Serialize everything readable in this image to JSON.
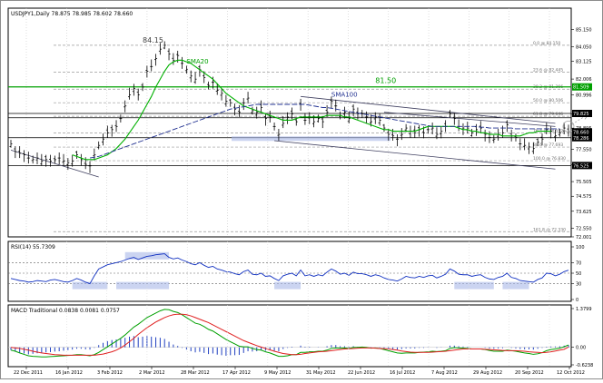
{
  "window": {
    "symbol_line": "USDJPY1,Daily  78.875 78.985 78.602 78.660"
  },
  "chart_data": {
    "type": "line",
    "price_panel": {
      "ylim": [
        72.0,
        86.5
      ],
      "ticks": [
        "85.150",
        "84.050",
        "83.125",
        "82.006",
        "80.996",
        "79.805",
        "78.895",
        "77.550",
        "76.575",
        "75.505",
        "74.575",
        "73.625",
        "72.550",
        "72.001"
      ],
      "series_names": {
        "price": "USDJPY1,Daily",
        "sma20": "SMA20",
        "sma100": "SMA100"
      },
      "annotations": {
        "high_label": "84.15",
        "resistance_label": "81.50",
        "sma20_label": "SMA20",
        "sma100_label": "SMA100"
      },
      "fib_levels": [
        {
          "label": "0.0 @ 84.150",
          "value": 84.15
        },
        {
          "label": "23.6 @ 82.445",
          "value": 82.445
        },
        {
          "label": "38.2 @ 81.366",
          "value": 81.366
        },
        {
          "label": "50.0 @ 80.506",
          "value": 80.506
        },
        {
          "label": "61.8 @ 79.646",
          "value": 79.646
        },
        {
          "label": "76.4 @ 78.582",
          "value": 78.582
        },
        {
          "label": "88.6 @ 77.693",
          "value": 77.693
        },
        {
          "label": "100.0 @ 76.830",
          "value": 76.83
        },
        {
          "label": "161.8 @ 72.330",
          "value": 72.33
        }
      ],
      "highlighted_prices": [
        {
          "label": "81.509",
          "value": 81.509,
          "color": "#00a000"
        },
        {
          "label": "79.825",
          "value": 79.825,
          "color": "#000000"
        },
        {
          "label": "78.660",
          "value": 78.66,
          "color": "#000000"
        },
        {
          "label": "78.286",
          "value": 78.286,
          "color": "#000000"
        },
        {
          "label": "76.525",
          "value": 76.525,
          "color": "#000000"
        }
      ],
      "horizontal_lines": [
        81.509,
        79.825,
        79.55,
        78.286,
        76.525
      ],
      "price_values": [
        77.9,
        77.4,
        77.3,
        77.2,
        77.0,
        76.9,
        77.0,
        76.8,
        76.9,
        76.8,
        76.9,
        77.0,
        76.8,
        76.7,
        76.8,
        77.2,
        76.9,
        76.6,
        76.5,
        77.2,
        77.8,
        78.2,
        78.6,
        78.8,
        79.0,
        79.5,
        80.3,
        81.0,
        81.4,
        81.0,
        81.5,
        82.5,
        82.8,
        83.3,
        83.9,
        84.15,
        83.6,
        83.2,
        83.5,
        83.0,
        82.6,
        82.2,
        82.0,
        82.6,
        82.1,
        81.6,
        81.8,
        81.3,
        81.1,
        80.6,
        80.5,
        80.1,
        79.9,
        80.5,
        80.8,
        80.0,
        79.9,
        80.2,
        79.5,
        79.6,
        79.0,
        78.5,
        79.2,
        79.6,
        79.8,
        79.3,
        80.4,
        79.4,
        79.6,
        79.3,
        79.5,
        79.3,
        79.9,
        80.6,
        80.3,
        79.7,
        79.9,
        79.5,
        80.1,
        79.8,
        79.8,
        79.6,
        79.3,
        79.6,
        79.4,
        78.9,
        78.5,
        78.4,
        78.2,
        78.5,
        78.9,
        78.7,
        78.6,
        78.8,
        78.6,
        78.8,
        78.9,
        78.5,
        78.7,
        79.0,
        79.8,
        79.5,
        79.0,
        78.9,
        78.9,
        78.6,
        78.8,
        78.9,
        78.5,
        78.3,
        78.2,
        78.5,
        78.6,
        79.1,
        78.4,
        78.3,
        77.9,
        77.8,
        77.7,
        77.6,
        78.0,
        78.2,
        78.8,
        78.7,
        78.4,
        78.6,
        78.9,
        78.66
      ],
      "sma20_values": [
        null,
        null,
        null,
        null,
        null,
        null,
        null,
        null,
        null,
        null,
        null,
        null,
        null,
        null,
        77.2,
        77.1,
        77.0,
        76.9,
        76.9,
        76.9,
        77.0,
        77.1,
        77.2,
        77.4,
        77.6,
        77.9,
        78.2,
        78.6,
        79.0,
        79.4,
        79.9,
        80.4,
        80.9,
        81.5,
        82.0,
        82.5,
        82.9,
        83.1,
        83.2,
        83.2,
        83.1,
        83.0,
        82.8,
        82.6,
        82.4,
        82.2,
        82.0,
        81.7,
        81.4,
        81.1,
        80.9,
        80.7,
        80.5,
        80.3,
        80.2,
        80.1,
        80.0,
        79.9,
        79.8,
        79.7,
        79.6,
        79.5,
        79.4,
        79.4,
        79.4,
        79.5,
        79.6,
        79.6,
        79.6,
        79.6,
        79.6,
        79.6,
        79.7,
        79.7,
        79.7,
        79.7,
        79.6,
        79.6,
        79.5,
        79.4,
        79.3,
        79.2,
        79.1,
        79.0,
        78.9,
        78.8,
        78.8,
        78.7,
        78.7,
        78.7,
        78.7,
        78.7,
        78.7,
        78.8,
        78.9,
        79.0,
        79.0,
        79.0,
        79.0,
        79.0,
        79.0,
        79.0,
        78.9,
        78.8,
        78.8,
        78.7,
        78.7,
        78.6,
        78.6,
        78.5,
        78.5,
        78.5,
        78.4,
        78.4,
        78.4,
        78.4,
        78.4,
        78.5,
        78.6,
        78.6,
        78.7,
        78.7,
        78.7,
        78.7
      ],
      "sma100_values": [
        null,
        null,
        null,
        null,
        null,
        null,
        null,
        null,
        null,
        null,
        null,
        null,
        null,
        null,
        null,
        null,
        null,
        null,
        77.0,
        77.05,
        77.1,
        77.2,
        77.3,
        77.4,
        77.5,
        77.6,
        77.7,
        77.8,
        77.9,
        78.0,
        78.1,
        78.2,
        78.3,
        78.4,
        78.5,
        78.6,
        78.7,
        78.8,
        78.9,
        79.0,
        79.1,
        79.2,
        79.3,
        79.4,
        79.5,
        79.6,
        79.7,
        79.8,
        79.9,
        80.0,
        80.1,
        80.15,
        80.2,
        80.25,
        80.3,
        80.35,
        80.4,
        80.4,
        80.4,
        80.4,
        80.4,
        80.4,
        80.4,
        80.4,
        80.4,
        80.4,
        80.4,
        80.4,
        80.35,
        80.3,
        80.25,
        80.2,
        80.2,
        80.15,
        80.1,
        80.05,
        80.0,
        79.95,
        79.9,
        79.85,
        79.8,
        79.75,
        79.7,
        79.65,
        79.6,
        79.55,
        79.5,
        79.45,
        79.4,
        79.35,
        79.3,
        79.25,
        79.2,
        79.15,
        79.1,
        79.05,
        79.0,
        79.0,
        79.0,
        79.0,
        79.0,
        79.0,
        79.0,
        79.0,
        79.0,
        79.0,
        79.0,
        78.95,
        78.95,
        78.9,
        78.9,
        78.9,
        78.9,
        78.9,
        78.9,
        78.85,
        78.85,
        78.85,
        78.85,
        78.85,
        78.85,
        78.85,
        78.85,
        78.85,
        78.85,
        78.85
      ]
    },
    "rsi_panel": {
      "title": "RSI(14) 55.7309",
      "ylim": [
        0,
        100
      ],
      "ticks": [
        "100",
        "70",
        "50",
        "30",
        "0"
      ],
      "levels": [
        70,
        50,
        30
      ],
      "values": [
        40,
        38,
        36,
        35,
        33,
        34,
        36,
        35,
        34,
        37,
        38,
        36,
        34,
        33,
        36,
        40,
        37,
        33,
        30,
        45,
        58,
        62,
        66,
        68,
        70,
        72,
        75,
        78,
        80,
        76,
        79,
        82,
        83,
        85,
        86,
        87,
        80,
        77,
        79,
        75,
        72,
        68,
        66,
        70,
        65,
        61,
        63,
        58,
        56,
        53,
        52,
        49,
        47,
        53,
        56,
        48,
        47,
        50,
        44,
        45,
        40,
        36,
        45,
        48,
        50,
        45,
        56,
        45,
        47,
        44,
        47,
        45,
        52,
        58,
        54,
        48,
        50,
        46,
        52,
        49,
        49,
        47,
        44,
        47,
        45,
        41,
        38,
        37,
        35,
        39,
        44,
        42,
        41,
        44,
        42,
        45,
        46,
        41,
        44,
        48,
        58,
        54,
        48,
        47,
        47,
        44,
        46,
        47,
        42,
        39,
        38,
        42,
        44,
        50,
        42,
        40,
        36,
        35,
        34,
        33,
        38,
        41,
        50,
        49,
        45,
        48,
        53,
        55.73
      ]
    },
    "macd_panel": {
      "title": "MACD Traditional 0.0838 0.0081 0.0757",
      "ylim": [
        -0.6238,
        1.3799
      ],
      "ticks": [
        "1.3799",
        "0.00",
        "-0.6238"
      ],
      "histogram": [
        -0.1,
        -0.15,
        -0.2,
        -0.22,
        -0.25,
        -0.23,
        -0.21,
        -0.2,
        -0.18,
        -0.17,
        -0.15,
        -0.14,
        -0.12,
        -0.1,
        -0.08,
        -0.05,
        -0.05,
        -0.07,
        -0.08,
        -0.02,
        0.08,
        0.16,
        0.22,
        0.26,
        0.28,
        0.3,
        0.34,
        0.38,
        0.4,
        0.36,
        0.38,
        0.4,
        0.38,
        0.36,
        0.34,
        0.3,
        0.2,
        0.1,
        0.05,
        -0.02,
        -0.08,
        -0.14,
        -0.18,
        -0.16,
        -0.2,
        -0.24,
        -0.22,
        -0.26,
        -0.28,
        -0.3,
        -0.28,
        -0.28,
        -0.27,
        -0.2,
        -0.14,
        -0.15,
        -0.14,
        -0.1,
        -0.12,
        -0.1,
        -0.12,
        -0.14,
        -0.06,
        -0.02,
        0.02,
        0.0,
        0.06,
        0.02,
        0.02,
        0.0,
        0.01,
        0.0,
        0.04,
        0.08,
        0.08,
        0.04,
        0.04,
        0.02,
        0.04,
        0.02,
        0.02,
        0.0,
        -0.02,
        0.0,
        -0.02,
        -0.04,
        -0.06,
        -0.08,
        -0.08,
        -0.06,
        -0.04,
        -0.04,
        -0.04,
        -0.02,
        -0.02,
        -0.01,
        0.0,
        -0.02,
        -0.01,
        0.0,
        0.06,
        0.06,
        0.04,
        0.03,
        0.02,
        0.0,
        0.0,
        0.0,
        -0.02,
        -0.04,
        -0.05,
        -0.04,
        -0.03,
        0.0,
        -0.02,
        -0.04,
        -0.06,
        -0.07,
        -0.07,
        -0.08,
        -0.05,
        -0.02,
        0.02,
        0.03,
        0.03,
        0.04,
        0.06,
        0.0757
      ],
      "macd_line": [
        -0.1,
        -0.14,
        -0.2,
        -0.25,
        -0.3,
        -0.32,
        -0.33,
        -0.34,
        -0.34,
        -0.33,
        -0.32,
        -0.31,
        -0.3,
        -0.29,
        -0.28,
        -0.26,
        -0.26,
        -0.28,
        -0.3,
        -0.26,
        -0.18,
        -0.08,
        0.02,
        0.12,
        0.22,
        0.32,
        0.44,
        0.58,
        0.72,
        0.82,
        0.94,
        1.06,
        1.14,
        1.22,
        1.3,
        1.35,
        1.34,
        1.28,
        1.24,
        1.16,
        1.06,
        0.96,
        0.86,
        0.82,
        0.74,
        0.64,
        0.58,
        0.48,
        0.38,
        0.28,
        0.2,
        0.12,
        0.04,
        0.02,
        0.02,
        -0.04,
        -0.08,
        -0.1,
        -0.16,
        -0.2,
        -0.26,
        -0.32,
        -0.32,
        -0.3,
        -0.26,
        -0.26,
        -0.18,
        -0.18,
        -0.16,
        -0.16,
        -0.14,
        -0.14,
        -0.1,
        -0.04,
        -0.02,
        -0.03,
        -0.02,
        -0.04,
        0.0,
        0.0,
        0.01,
        0.0,
        -0.03,
        -0.02,
        -0.04,
        -0.08,
        -0.12,
        -0.16,
        -0.2,
        -0.21,
        -0.2,
        -0.2,
        -0.2,
        -0.18,
        -0.17,
        -0.16,
        -0.14,
        -0.15,
        -0.14,
        -0.12,
        -0.04,
        -0.01,
        -0.02,
        -0.03,
        -0.04,
        -0.06,
        -0.06,
        -0.06,
        -0.08,
        -0.11,
        -0.14,
        -0.14,
        -0.14,
        -0.1,
        -0.12,
        -0.14,
        -0.17,
        -0.2,
        -0.22,
        -0.25,
        -0.23,
        -0.19,
        -0.12,
        -0.08,
        -0.06,
        -0.03,
        0.02,
        0.0838
      ],
      "signal_line": [
        0.0,
        -0.02,
        -0.04,
        -0.07,
        -0.1,
        -0.14,
        -0.17,
        -0.2,
        -0.22,
        -0.24,
        -0.26,
        -0.27,
        -0.28,
        -0.28,
        -0.28,
        -0.28,
        -0.28,
        -0.28,
        -0.28,
        -0.28,
        -0.26,
        -0.24,
        -0.2,
        -0.16,
        -0.1,
        -0.02,
        0.08,
        0.2,
        0.32,
        0.46,
        0.58,
        0.7,
        0.8,
        0.9,
        0.98,
        1.06,
        1.12,
        1.16,
        1.18,
        1.18,
        1.16,
        1.12,
        1.06,
        1.0,
        0.94,
        0.88,
        0.8,
        0.72,
        0.64,
        0.56,
        0.48,
        0.4,
        0.32,
        0.24,
        0.18,
        0.12,
        0.06,
        0.01,
        -0.04,
        -0.09,
        -0.14,
        -0.18,
        -0.22,
        -0.24,
        -0.26,
        -0.26,
        -0.25,
        -0.22,
        -0.2,
        -0.18,
        -0.16,
        -0.15,
        -0.14,
        -0.12,
        -0.1,
        -0.08,
        -0.06,
        -0.05,
        -0.04,
        -0.03,
        -0.02,
        -0.02,
        -0.02,
        -0.03,
        -0.04,
        -0.05,
        -0.06,
        -0.08,
        -0.1,
        -0.13,
        -0.15,
        -0.17,
        -0.18,
        -0.18,
        -0.18,
        -0.18,
        -0.17,
        -0.16,
        -0.15,
        -0.14,
        -0.12,
        -0.1,
        -0.08,
        -0.06,
        -0.06,
        -0.06,
        -0.06,
        -0.06,
        -0.07,
        -0.08,
        -0.09,
        -0.1,
        -0.11,
        -0.12,
        -0.12,
        -0.12,
        -0.13,
        -0.14,
        -0.16,
        -0.17,
        -0.18,
        -0.19,
        -0.18,
        -0.16,
        -0.13,
        -0.1,
        -0.07,
        0.0081
      ]
    },
    "x_axis_labels": [
      "22 Dec 2011",
      "16 Jan 2012",
      "3 Feb 2012",
      "2 Mar 2012",
      "28 Mar 2012",
      "17 Apr 2012",
      "9 May 2012",
      "31 May 2012",
      "22 Jun 2012",
      "16 Jul 2012",
      "7 Aug 2012",
      "29 Aug 2012",
      "20 Sep 2012",
      "12 Oct 2012"
    ]
  }
}
